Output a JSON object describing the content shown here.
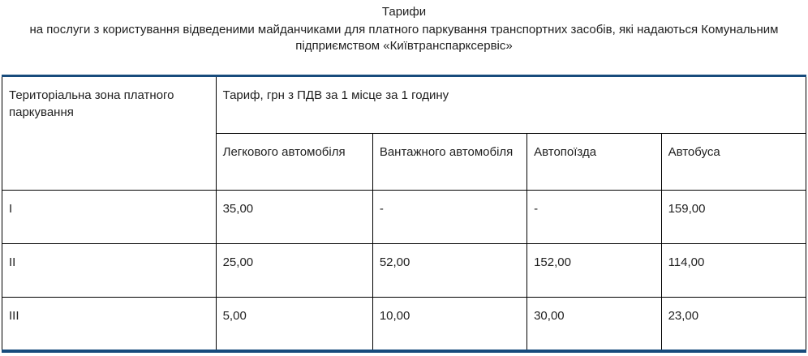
{
  "page": {
    "title": "Тарифи",
    "subtitle": "на послуги з користування відведеними майданчиками для платного паркування транспортних засобів, які надаються Комунальним підприємством «Київтранспарксервіс»"
  },
  "table": {
    "zone_header": "Територіальна зона платного паркування",
    "tariff_group_header": "Тариф, грн з ПДВ за 1 місце за 1 годину",
    "vehicle_headers": [
      "Легкового автомобіля",
      "Вантажного автомобіля",
      "Автопоїзда",
      "Автобуса"
    ],
    "rows": [
      {
        "zone": "I",
        "values": [
          "35,00",
          "-",
          "-",
          "159,00"
        ]
      },
      {
        "zone": "II",
        "values": [
          "25,00",
          "52,00",
          "152,00",
          "114,00"
        ]
      },
      {
        "zone": "III",
        "values": [
          "5,00",
          "10,00",
          "30,00",
          "23,00"
        ]
      }
    ]
  },
  "colors": {
    "accent_border": "#174b7c",
    "cell_border": "#000000",
    "text": "#1f1f1f",
    "background": "#ffffff"
  }
}
